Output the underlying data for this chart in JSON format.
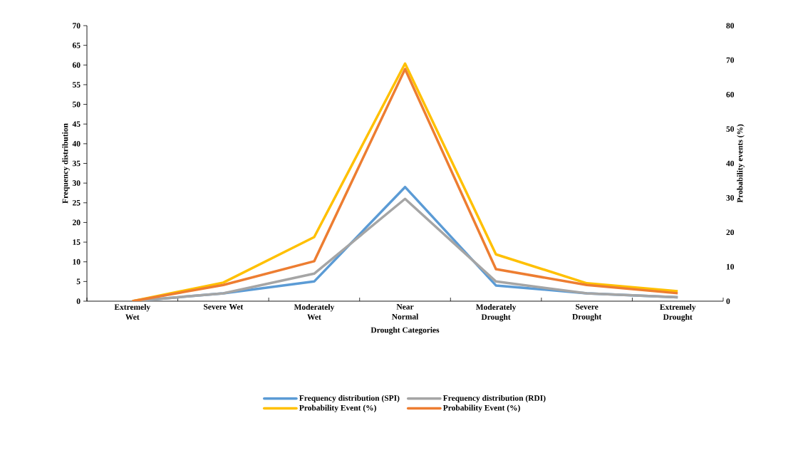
{
  "chart_data": {
    "type": "line",
    "xlabel": "Drought Categories",
    "ylabel": "Frequency distribution",
    "y2label": "Probability events (%)",
    "categories": [
      "Extremely Wet",
      "Severe Wet",
      "Moderately Wet",
      "Near Normal",
      "Moderately Drought",
      "Severe Drought",
      "Extremely Drought"
    ],
    "series": [
      {
        "name": "Frequency distribution (SPI)",
        "color": "#5b9bd5",
        "axis": "y",
        "values": [
          0,
          2,
          5,
          29,
          4,
          2,
          1
        ]
      },
      {
        "name": "Frequency distribution (RDI)",
        "color": "#a5a5a5",
        "axis": "y",
        "values": [
          0,
          2,
          7,
          26,
          5,
          2,
          1
        ]
      },
      {
        "name": "Probability Event (%)",
        "color": "#ffc000",
        "axis": "y2",
        "values": [
          0,
          5.4,
          18.6,
          69,
          13.6,
          5.2,
          2.9
        ]
      },
      {
        "name": "Probability Event (%)",
        "color": "#ed7d31",
        "axis": "y2",
        "values": [
          0,
          4.7,
          11.6,
          67.4,
          9.3,
          4.7,
          2.3
        ]
      }
    ],
    "ylim": [
      0,
      70
    ],
    "yticks": [
      0,
      5,
      10,
      15,
      20,
      25,
      30,
      35,
      40,
      45,
      50,
      55,
      60,
      65,
      70
    ],
    "y2lim": [
      0,
      80
    ],
    "y2ticks": [
      0,
      10,
      20,
      30,
      40,
      50,
      60,
      70,
      80
    ],
    "legend": "bottom",
    "grid": false
  }
}
